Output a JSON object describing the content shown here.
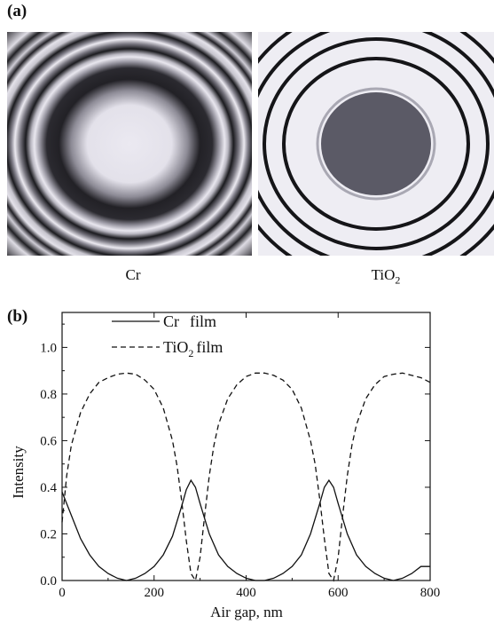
{
  "panel_a": {
    "label": "(a)",
    "images": [
      {
        "caption": "Cr",
        "description_key": "cr-interference-rings"
      },
      {
        "caption_main": "TiO",
        "caption_sub": "2",
        "description_key": "tio2-interference-rings"
      }
    ]
  },
  "panel_b": {
    "label": "(b)"
  },
  "chart_data": {
    "type": "line",
    "xlabel": "Air gap, nm",
    "ylabel": "Intensity",
    "xlim": [
      0,
      800
    ],
    "ylim": [
      0,
      1.15
    ],
    "xticks": [
      "0",
      "200",
      "400",
      "600",
      "800"
    ],
    "yticks": [
      "0.0",
      "0.2",
      "0.4",
      "0.6",
      "0.8",
      "1.0"
    ],
    "legend_position": "top-left",
    "series": [
      {
        "name_main": "Cr",
        "name_tail": "film",
        "style": "solid",
        "x": [
          0,
          20,
          40,
          60,
          80,
          100,
          120,
          140,
          160,
          180,
          200,
          220,
          240,
          260,
          270,
          280,
          290,
          300,
          320,
          340,
          360,
          380,
          400,
          420,
          440,
          460,
          480,
          500,
          520,
          540,
          560,
          570,
          580,
          590,
          600,
          620,
          640,
          660,
          680,
          700,
          720,
          740,
          760,
          780,
          800
        ],
        "y": [
          0.38,
          0.28,
          0.18,
          0.11,
          0.06,
          0.03,
          0.01,
          0.0,
          0.01,
          0.03,
          0.06,
          0.11,
          0.19,
          0.32,
          0.39,
          0.43,
          0.4,
          0.33,
          0.2,
          0.11,
          0.06,
          0.03,
          0.01,
          0.0,
          0.0,
          0.01,
          0.03,
          0.06,
          0.11,
          0.2,
          0.33,
          0.4,
          0.43,
          0.4,
          0.33,
          0.2,
          0.11,
          0.06,
          0.03,
          0.01,
          0.0,
          0.01,
          0.03,
          0.06,
          0.06
        ]
      },
      {
        "name_main": "TiO",
        "name_sub": "2",
        "name_tail": "film",
        "style": "dashed",
        "x": [
          0,
          10,
          20,
          40,
          60,
          80,
          100,
          120,
          140,
          160,
          180,
          200,
          220,
          240,
          250,
          260,
          270,
          280,
          290,
          300,
          310,
          320,
          330,
          340,
          360,
          380,
          400,
          420,
          440,
          460,
          480,
          500,
          520,
          540,
          550,
          560,
          570,
          580,
          590,
          600,
          610,
          620,
          630,
          640,
          660,
          680,
          700,
          720,
          740,
          760,
          780,
          800
        ],
        "y": [
          0.25,
          0.45,
          0.58,
          0.72,
          0.8,
          0.85,
          0.87,
          0.885,
          0.89,
          0.885,
          0.86,
          0.82,
          0.74,
          0.6,
          0.49,
          0.34,
          0.17,
          0.03,
          0.0,
          0.1,
          0.28,
          0.45,
          0.58,
          0.67,
          0.78,
          0.84,
          0.875,
          0.89,
          0.89,
          0.88,
          0.86,
          0.82,
          0.74,
          0.6,
          0.5,
          0.35,
          0.18,
          0.03,
          0.0,
          0.1,
          0.28,
          0.45,
          0.58,
          0.67,
          0.78,
          0.84,
          0.875,
          0.885,
          0.89,
          0.88,
          0.87,
          0.85
        ]
      }
    ]
  },
  "colors": {
    "ring_dark": "#1a1a1a",
    "ring_light": "#ebe9f1",
    "tio2_center": "#5b5a66"
  }
}
